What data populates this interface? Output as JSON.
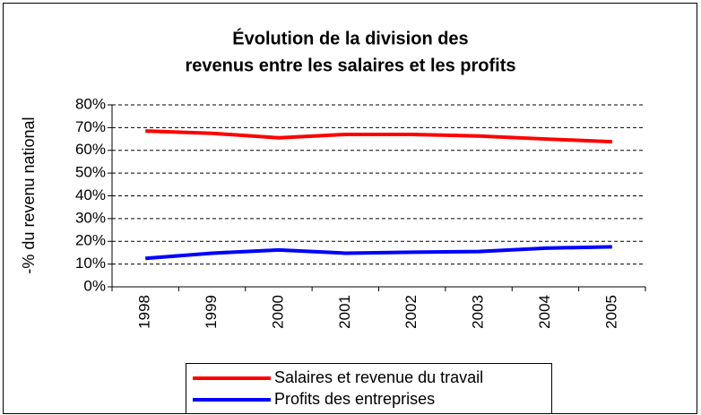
{
  "chart_data": {
    "type": "line",
    "title": "Évolution de la division des",
    "subtitle": "revenus entre les salaires et les profits",
    "y_label": "-% du revenu national",
    "categories": [
      "1998",
      "1999",
      "2000",
      "2001",
      "2002",
      "2003",
      "2004",
      "2005"
    ],
    "series": [
      {
        "name": "Salaires et revenue du travail",
        "color": "#ff0000",
        "values": [
          68.5,
          67.5,
          65.5,
          67,
          67,
          66.3,
          65,
          63.8
        ]
      },
      {
        "name": "Profits des entreprises",
        "color": "#0000ff",
        "values": [
          12.5,
          14.8,
          16.2,
          14.8,
          15.2,
          15.5,
          17,
          17.6
        ]
      }
    ],
    "ylim": [
      0,
      80
    ],
    "yticks": [
      {
        "value": 0,
        "label": "0%"
      },
      {
        "value": 10,
        "label": "10%"
      },
      {
        "value": 20,
        "label": "20%"
      },
      {
        "value": 30,
        "label": "30%"
      },
      {
        "value": 40,
        "label": "40%"
      },
      {
        "value": 50,
        "label": "50%"
      },
      {
        "value": 60,
        "label": "60%"
      },
      {
        "value": 70,
        "label": "70%"
      },
      {
        "value": 80,
        "label": "80%"
      }
    ],
    "grid": true,
    "legend": "bottom"
  }
}
